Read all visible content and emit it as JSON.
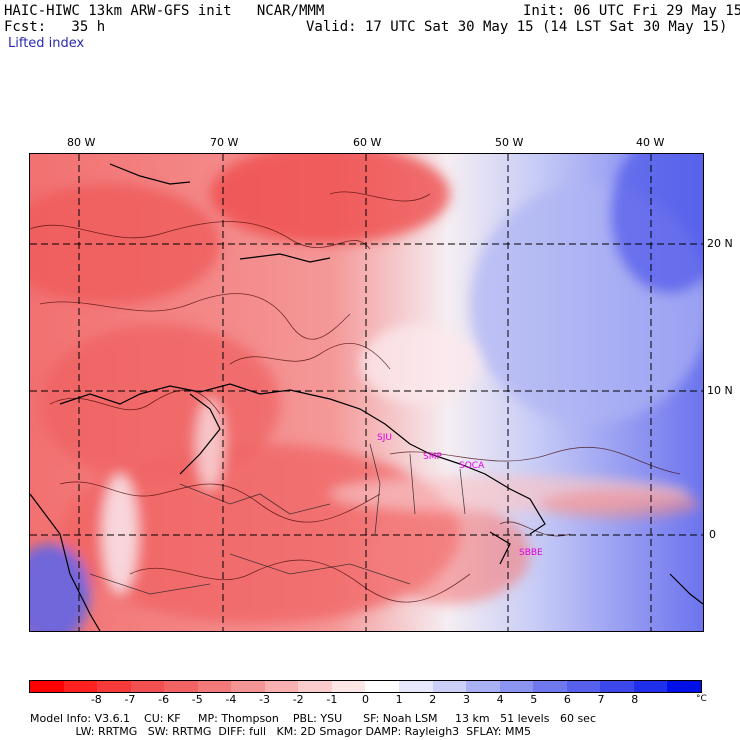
{
  "header": {
    "model_title": "HAIC-HIWC 13km ARW-GFS init   NCAR/MMM",
    "forecast": "Fcst:   35 h",
    "init": "Init: 06 UTC Fri 29 May 15",
    "valid": "Valid: 17 UTC Sat 30 May 15 (14 LST Sat 30 May 15)",
    "field_name": "Lifted index"
  },
  "map": {
    "lon_labels": [
      "80 W",
      "70 W",
      "60 W",
      "50 W",
      "40 W"
    ],
    "lat_labels": [
      "20 N",
      "10 N",
      "0"
    ],
    "places": [
      "SJU",
      "SMP",
      "SOCA",
      "SBBE"
    ]
  },
  "colorbar": {
    "ticks": [
      "-8",
      "-7",
      "-6",
      "-5",
      "-4",
      "-3",
      "-2",
      "-1",
      "0",
      "1",
      "2",
      "3",
      "4",
      "5",
      "6",
      "7",
      "8"
    ],
    "unit": "°C",
    "colors": [
      "#ff0000",
      "#ff2020",
      "#f63a3a",
      "#f25050",
      "#f26464",
      "#f27a7a",
      "#f59494",
      "#f8b0b0",
      "#fbcccc",
      "#fde6e6",
      "#ffffff",
      "#e6e8fb",
      "#ccd0f8",
      "#aab0f4",
      "#8c94f2",
      "#7078f0",
      "#5860ee",
      "#3c48ec",
      "#2030ea",
      "#0010e8"
    ]
  },
  "footer": {
    "line1": "Model Info: V3.6.1    CU: KF     MP: Thompson    PBL: YSU      SF: Noah LSM     13 km   51 levels   60 sec",
    "line2": "             LW: RRTMG   SW: RRTMG  DIFF: full   KM: 2D Smagor DAMP: Rayleigh3  SFLAY: MM5"
  }
}
